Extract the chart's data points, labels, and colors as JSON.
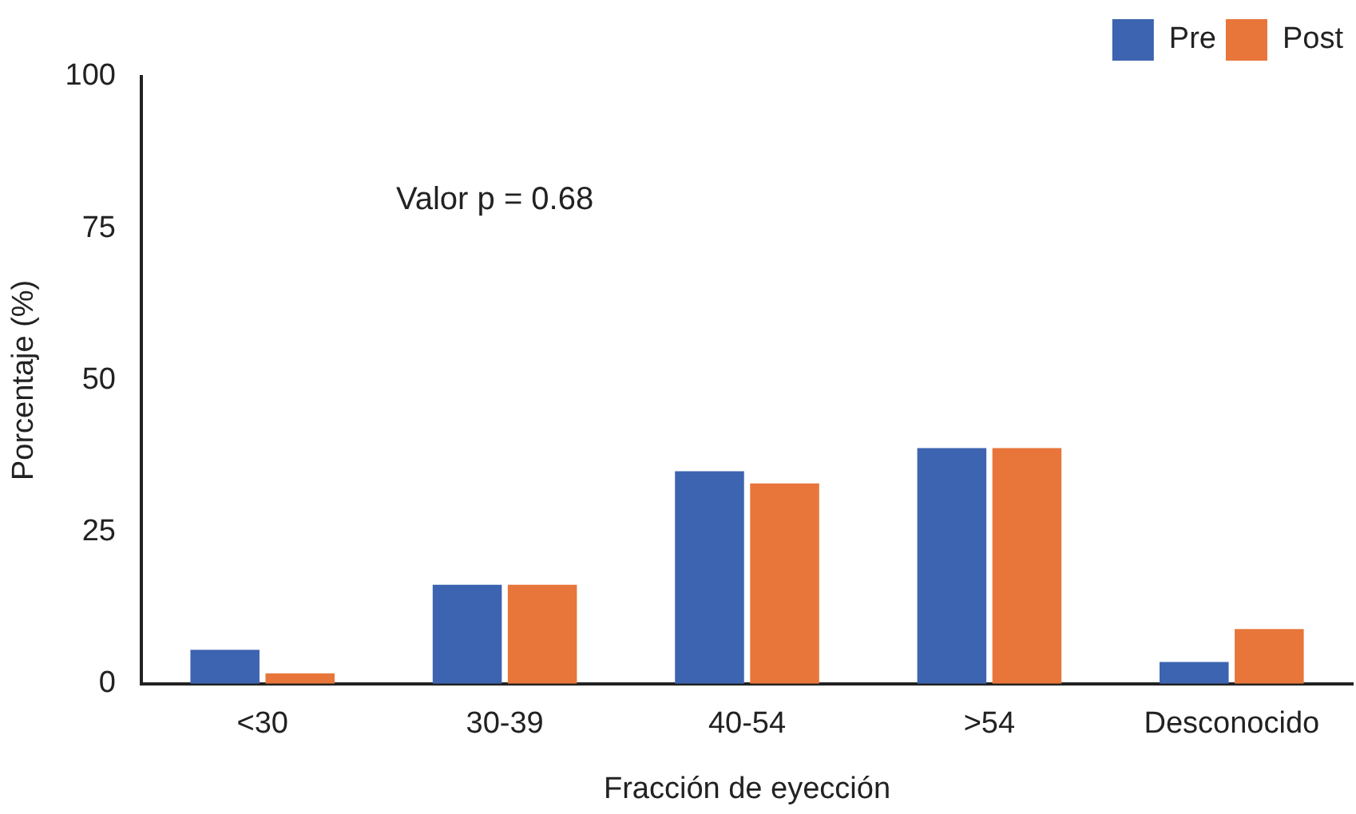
{
  "chart_data": {
    "type": "bar",
    "xlabel": "Fracción de eyección",
    "ylabel": "Porcentaje (%)",
    "categories": [
      "<30",
      "30-39",
      "40-54",
      ">54",
      "Desconocido"
    ],
    "series": [
      {
        "name": "Pre",
        "color": "#3d64b0",
        "values": [
          5.6,
          16.3,
          35,
          38.8,
          3.6
        ]
      },
      {
        "name": "Post",
        "color": "#e8763a",
        "values": [
          1.7,
          16.3,
          33,
          38.8,
          9
        ]
      }
    ],
    "ylim": [
      0,
      100
    ],
    "yticks": [
      0,
      25,
      50,
      75,
      100
    ],
    "grid": false,
    "legend": "top right",
    "annotations": [
      "Valor p = 0.68"
    ]
  }
}
